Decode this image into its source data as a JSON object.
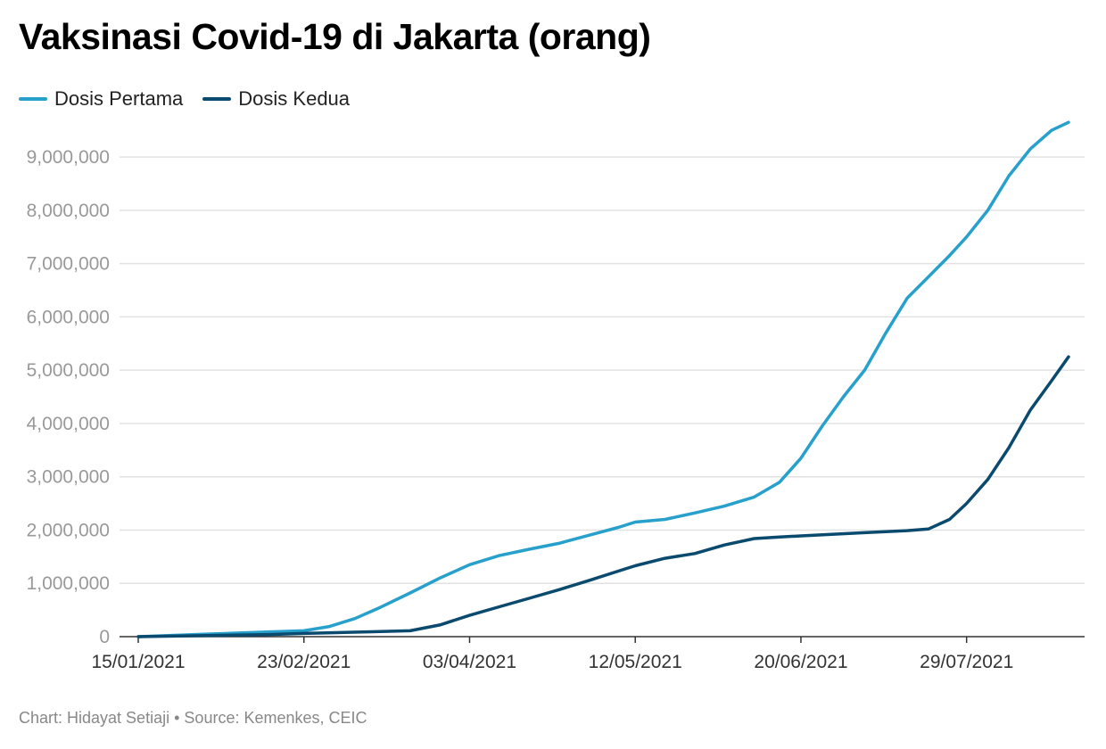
{
  "title": "Vaksinasi Covid-19 di Jakarta (orang)",
  "footer": {
    "chart_credit": "Chart: Hidayat Setiaji",
    "separator": "•",
    "source": "Source: Kemenkes, CEIC"
  },
  "colors": {
    "dose1": "#27a0cc",
    "dose2": "#0a4a6e",
    "grid": "#e2e2e2",
    "axis": "#333333"
  },
  "chart_data": {
    "type": "line",
    "title": "Vaksinasi Covid-19 di Jakarta (orang)",
    "xlabel": "",
    "ylabel": "",
    "ylim": [
      0,
      9000000
    ],
    "grid": true,
    "legend_position": "top-left",
    "y_ticks": [
      {
        "value": 0,
        "label": "0"
      },
      {
        "value": 1000000,
        "label": "1,000,000"
      },
      {
        "value": 2000000,
        "label": "2,000,000"
      },
      {
        "value": 3000000,
        "label": "3,000,000"
      },
      {
        "value": 4000000,
        "label": "4,000,000"
      },
      {
        "value": 5000000,
        "label": "5,000,000"
      },
      {
        "value": 6000000,
        "label": "6,000,000"
      },
      {
        "value": 7000000,
        "label": "7,000,000"
      },
      {
        "value": 8000000,
        "label": "8,000,000"
      },
      {
        "value": 9000000,
        "label": "9,000,000"
      }
    ],
    "x_ticks": [
      "15/01/2021",
      "23/02/2021",
      "03/04/2021",
      "12/05/2021",
      "20/06/2021",
      "29/07/2021"
    ],
    "x_range": [
      "15/01/2021",
      "22/08/2021"
    ],
    "series": [
      {
        "name": "Dosis Pertama",
        "points": [
          [
            "15/01/2021",
            0
          ],
          [
            "01/02/2021",
            50000
          ],
          [
            "15/02/2021",
            90000
          ],
          [
            "23/02/2021",
            110000
          ],
          [
            "01/03/2021",
            190000
          ],
          [
            "07/03/2021",
            340000
          ],
          [
            "13/03/2021",
            550000
          ],
          [
            "20/03/2021",
            820000
          ],
          [
            "27/03/2021",
            1100000
          ],
          [
            "03/04/2021",
            1350000
          ],
          [
            "10/04/2021",
            1520000
          ],
          [
            "17/04/2021",
            1640000
          ],
          [
            "24/04/2021",
            1750000
          ],
          [
            "01/05/2021",
            1900000
          ],
          [
            "08/05/2021",
            2050000
          ],
          [
            "12/05/2021",
            2150000
          ],
          [
            "19/05/2021",
            2200000
          ],
          [
            "26/05/2021",
            2320000
          ],
          [
            "02/06/2021",
            2450000
          ],
          [
            "09/06/2021",
            2620000
          ],
          [
            "15/06/2021",
            2900000
          ],
          [
            "20/06/2021",
            3350000
          ],
          [
            "25/06/2021",
            3950000
          ],
          [
            "30/06/2021",
            4500000
          ],
          [
            "05/07/2021",
            5000000
          ],
          [
            "10/07/2021",
            5700000
          ],
          [
            "15/07/2021",
            6350000
          ],
          [
            "20/07/2021",
            6750000
          ],
          [
            "25/07/2021",
            7150000
          ],
          [
            "29/07/2021",
            7500000
          ],
          [
            "03/08/2021",
            8000000
          ],
          [
            "08/08/2021",
            8650000
          ],
          [
            "13/08/2021",
            9150000
          ],
          [
            "18/08/2021",
            9500000
          ],
          [
            "22/08/2021",
            9650000
          ]
        ]
      },
      {
        "name": "Dosis Kedua",
        "points": [
          [
            "15/01/2021",
            0
          ],
          [
            "15/02/2021",
            40000
          ],
          [
            "23/02/2021",
            60000
          ],
          [
            "10/03/2021",
            90000
          ],
          [
            "20/03/2021",
            110000
          ],
          [
            "27/03/2021",
            220000
          ],
          [
            "03/04/2021",
            400000
          ],
          [
            "10/04/2021",
            560000
          ],
          [
            "17/04/2021",
            720000
          ],
          [
            "24/04/2021",
            880000
          ],
          [
            "01/05/2021",
            1050000
          ],
          [
            "08/05/2021",
            1230000
          ],
          [
            "12/05/2021",
            1330000
          ],
          [
            "19/05/2021",
            1470000
          ],
          [
            "26/05/2021",
            1560000
          ],
          [
            "02/06/2021",
            1720000
          ],
          [
            "09/06/2021",
            1840000
          ],
          [
            "15/06/2021",
            1870000
          ],
          [
            "20/06/2021",
            1890000
          ],
          [
            "05/07/2021",
            1950000
          ],
          [
            "15/07/2021",
            1990000
          ],
          [
            "20/07/2021",
            2020000
          ],
          [
            "25/07/2021",
            2200000
          ],
          [
            "29/07/2021",
            2500000
          ],
          [
            "03/08/2021",
            2950000
          ],
          [
            "08/08/2021",
            3550000
          ],
          [
            "13/08/2021",
            4250000
          ],
          [
            "18/08/2021",
            4800000
          ],
          [
            "22/08/2021",
            5250000
          ]
        ]
      }
    ]
  }
}
